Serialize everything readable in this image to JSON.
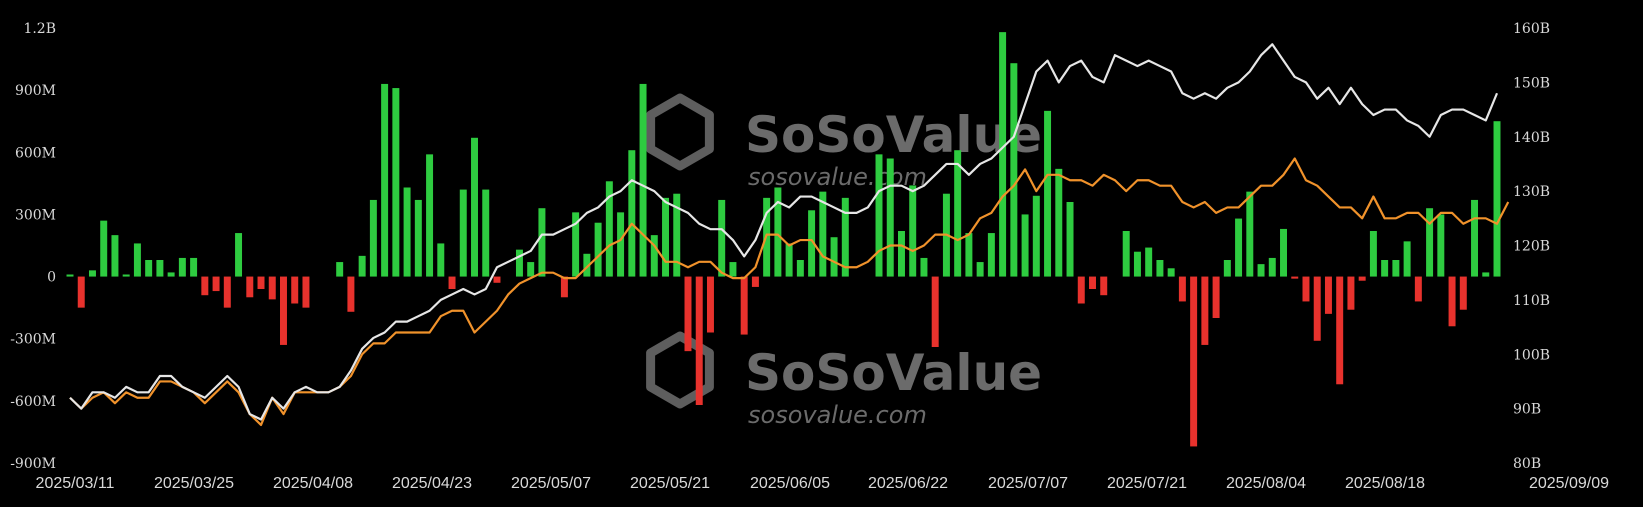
{
  "chart_data": {
    "type": "bar",
    "left_axis_ticks": [
      "1.2B",
      "900M",
      "600M",
      "300M",
      "0",
      "-300M",
      "-600M",
      "-900M"
    ],
    "left_axis_range": [
      -900000000,
      1200000000
    ],
    "right_axis_ticks": [
      "160B",
      "150B",
      "140B",
      "130B",
      "120B",
      "110B",
      "100B",
      "90B",
      "80B"
    ],
    "right_axis_range": [
      80,
      160
    ],
    "x_tick_labels": [
      "2025/03/11",
      "2025/03/25",
      "2025/04/08",
      "2025/04/23",
      "2025/05/07",
      "2025/05/21",
      "2025/06/05",
      "2025/06/22",
      "2025/07/07",
      "2025/07/21",
      "2025/08/04",
      "2025/08/18",
      "2025/09/09"
    ],
    "watermark": {
      "brand": "SoSoValue",
      "url": "sosovalue.com"
    },
    "colors": {
      "inflow": "#2ecc40",
      "outflow": "#e8322d",
      "white_line": "#e6e6e6",
      "orange_line": "#f0922b",
      "background": "#000000"
    },
    "series": [
      {
        "type": "bar",
        "values_millions": [
          10,
          -150,
          30,
          270,
          200,
          10,
          160,
          80,
          80,
          20,
          90,
          90,
          -90,
          -70,
          -150,
          210,
          -100,
          -60,
          -110,
          -330,
          -130,
          -150,
          0,
          0,
          70,
          -170,
          100,
          370,
          930,
          910,
          430,
          370,
          590,
          160,
          -60,
          420,
          670,
          420,
          -30,
          0,
          130,
          70,
          330,
          0,
          -100,
          310,
          110,
          260,
          460,
          310,
          610,
          930,
          200,
          380,
          400,
          -360,
          -620,
          -270,
          370,
          70,
          -280,
          -50,
          380,
          430,
          160,
          80,
          320,
          410,
          190,
          380,
          0,
          0,
          590,
          570,
          220,
          440,
          90,
          -340,
          400,
          610,
          210,
          70,
          210,
          1180,
          1030,
          300,
          390,
          800,
          520,
          360,
          -130,
          -60,
          -90,
          0,
          220,
          120,
          140,
          80,
          40,
          -120,
          -820,
          -330,
          -200,
          80,
          280,
          410,
          60,
          90,
          230,
          -10,
          -120,
          -310,
          -180,
          -520,
          -160,
          -20,
          220,
          80,
          80,
          170,
          -120,
          330,
          300,
          -240,
          -160,
          370,
          20,
          750
        ]
      },
      {
        "type": "line",
        "values_billions": [
          92,
          90,
          93,
          93,
          92,
          94,
          93,
          93,
          96,
          96,
          94,
          93,
          92,
          94,
          96,
          94,
          89,
          88,
          92,
          90,
          93,
          94,
          93,
          93,
          94,
          97,
          101,
          103,
          104,
          106,
          106,
          107,
          108,
          110,
          111,
          112,
          111,
          112,
          116,
          117,
          118,
          119,
          122,
          122,
          123,
          124,
          126,
          127,
          129,
          130,
          132,
          131,
          130,
          128,
          127,
          126,
          124,
          123,
          123,
          121,
          118,
          121,
          126,
          128,
          127,
          129,
          129,
          128,
          127,
          126,
          126,
          127,
          130,
          131,
          131,
          130,
          131,
          133,
          135,
          135,
          133,
          135,
          136,
          138,
          140,
          146,
          152,
          154,
          150,
          153,
          154,
          151,
          150,
          155,
          154,
          153,
          154,
          153,
          152,
          148,
          147,
          148,
          147,
          149,
          150,
          152,
          155,
          157,
          154,
          151,
          150,
          147,
          149,
          146,
          149,
          146,
          144,
          145,
          145,
          143,
          142,
          140,
          144,
          145,
          145,
          144,
          143,
          148
        ]
      },
      {
        "type": "line",
        "values_billions": [
          92,
          90,
          92,
          93,
          91,
          93,
          92,
          92,
          95,
          95,
          94,
          93,
          91,
          93,
          95,
          93,
          89,
          87,
          92,
          89,
          93,
          93,
          93,
          93,
          94,
          96,
          100,
          102,
          102,
          104,
          104,
          104,
          104,
          107,
          108,
          108,
          104,
          106,
          108,
          111,
          113,
          114,
          115,
          115,
          114,
          114,
          116,
          118,
          120,
          121,
          124,
          122,
          120,
          117,
          117,
          116,
          117,
          117,
          115,
          114,
          114,
          116,
          122,
          122,
          120,
          121,
          121,
          118,
          117,
          116,
          116,
          117,
          119,
          120,
          120,
          119,
          120,
          122,
          122,
          121,
          122,
          125,
          126,
          129,
          131,
          134,
          130,
          133,
          133,
          132,
          132,
          131,
          133,
          132,
          130,
          132,
          132,
          131,
          131,
          128,
          127,
          128,
          126,
          127,
          127,
          129,
          131,
          131,
          133,
          136,
          132,
          131,
          129,
          127,
          127,
          125,
          129,
          125,
          125,
          126,
          126,
          124,
          126,
          126,
          124,
          125,
          125,
          124,
          128
        ]
      }
    ]
  }
}
